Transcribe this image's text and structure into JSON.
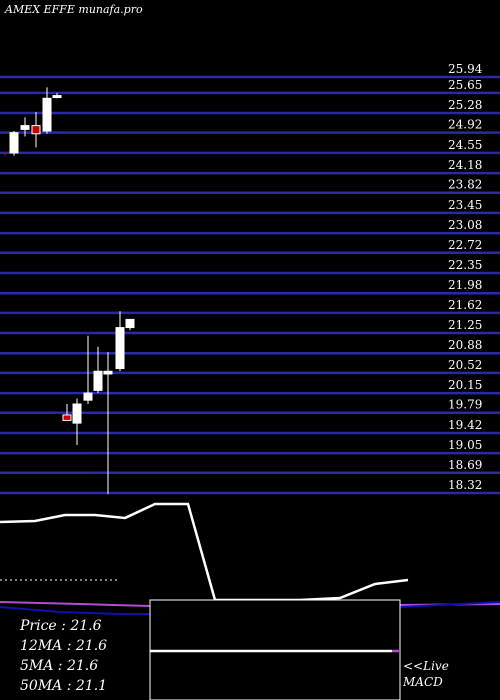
{
  "title": "AMEX  EFFE munafa.pro",
  "colors": {
    "background": "#000000",
    "grid": "#2a2aa8",
    "up_candle": "#ffffff",
    "down_candle": "#cc0000",
    "price_line": "#ffffff",
    "ma_blue": "#1010b0",
    "ma_purple": "#b050d0",
    "macd_line": "#ffffff",
    "macd_signal": "#b050d0"
  },
  "chart_data": {
    "type": "candlestick",
    "title": "AMEX  EFFE munafa.pro",
    "yticks": [
      "25.94",
      "25.65",
      "25.28",
      "24.92",
      "24.55",
      "24.18",
      "23.82",
      "23.45",
      "23.08",
      "22.72",
      "22.35",
      "21.98",
      "21.62",
      "21.25",
      "20.88",
      "20.52",
      "20.15",
      "19.79",
      "19.42",
      "19.05",
      "18.69",
      "18.32"
    ],
    "ylim": [
      18.2,
      26.1
    ],
    "grid": true,
    "candles": [
      {
        "open": 24.55,
        "high": 24.95,
        "low": 24.5,
        "close": 24.92,
        "dir": "up"
      },
      {
        "open": 25.05,
        "high": 25.2,
        "low": 24.85,
        "close": 24.98,
        "dir": "up"
      },
      {
        "open": 25.05,
        "high": 25.3,
        "low": 24.65,
        "close": 24.9,
        "dir": "down"
      },
      {
        "open": 24.95,
        "high": 25.75,
        "low": 24.9,
        "close": 25.55,
        "dir": "up"
      },
      {
        "open": 25.58,
        "high": 25.65,
        "low": 25.55,
        "close": 25.6,
        "dir": "up"
      },
      {
        "open": 19.75,
        "high": 19.95,
        "low": 19.7,
        "close": 19.65,
        "dir": "down"
      },
      {
        "open": 19.6,
        "high": 20.05,
        "low": 19.2,
        "close": 19.95,
        "dir": "up"
      },
      {
        "open": 20.02,
        "high": 21.2,
        "low": 19.95,
        "close": 20.15,
        "dir": "up"
      },
      {
        "open": 20.2,
        "high": 21.0,
        "low": 20.15,
        "close": 20.55,
        "dir": "up"
      },
      {
        "open": 20.5,
        "high": 20.9,
        "low": 18.3,
        "close": 20.55,
        "dir": "up"
      },
      {
        "open": 20.6,
        "high": 21.65,
        "low": 20.55,
        "close": 21.35,
        "dir": "up"
      },
      {
        "open": 21.35,
        "high": 21.5,
        "low": 21.3,
        "close": 21.5,
        "dir": "up"
      }
    ],
    "legend": {
      "price": "Price   : 21.6",
      "ma12": "12MA : 21.6",
      "ma5": "5MA : 21.6",
      "ma50": "50MA : 21.1"
    },
    "macd_label_1": "<<Live",
    "macd_label_2": "MACD"
  }
}
